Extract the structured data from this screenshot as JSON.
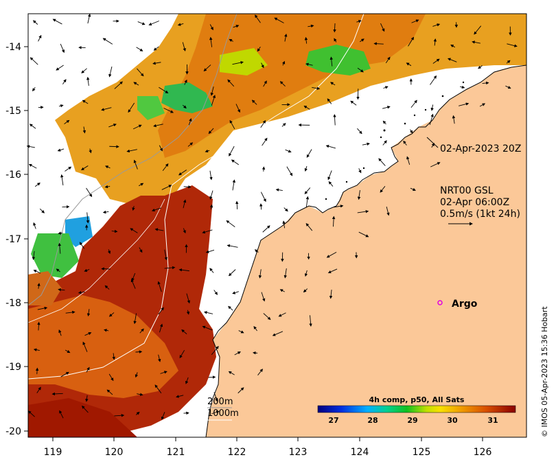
{
  "map": {
    "lon_ticks": [
      "119",
      "120",
      "121",
      "122",
      "123",
      "124",
      "125",
      "126"
    ],
    "lat_ticks": [
      "-14",
      "-15",
      "-16",
      "-17",
      "-18",
      "-19",
      "-20"
    ],
    "lon_range": [
      118.6,
      126.7
    ],
    "lat_range": [
      -20.1,
      -13.5
    ]
  },
  "annotations": {
    "track_label": "02-Apr-2023 20Z",
    "current_title": "NRT00 GSL",
    "current_time": "02-Apr 06:00Z",
    "current_scale": "0.5m/s (1kt 24h)",
    "argo_label": "Argo",
    "depth_200": "200m",
    "depth_1000": "1000m",
    "credit": "© IMOS 05-Apr-2023 15:36 Hobart"
  },
  "colorbar": {
    "title": "4h comp, p50, All Sats",
    "ticks": [
      "27",
      "28",
      "29",
      "30",
      "31"
    ],
    "min": 26.6,
    "max": 31.7
  },
  "colors": {
    "land": "#fbc898",
    "cloud": "#ffffff",
    "argo": "#e000e0"
  }
}
